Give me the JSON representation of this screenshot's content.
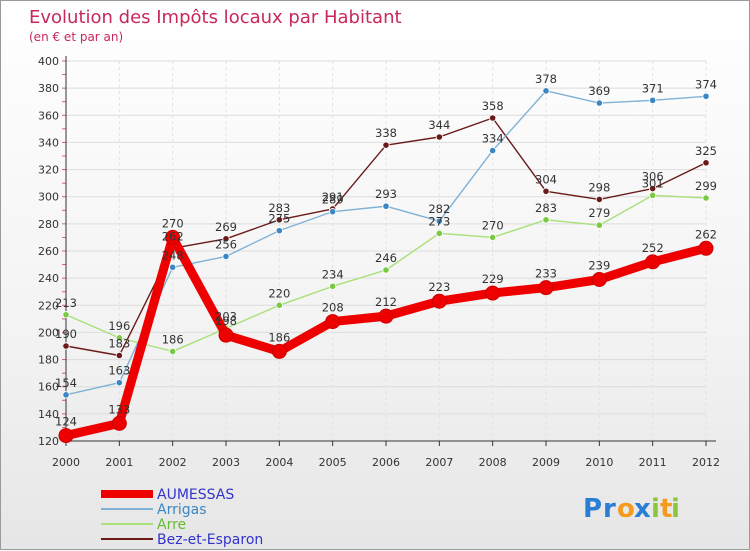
{
  "chart_data": {
    "type": "line",
    "title": "Evolution des Impôts locaux par Habitant",
    "subtitle": "(en € et par an)",
    "x": [
      "2000",
      "2001",
      "2002",
      "2003",
      "2004",
      "2005",
      "2006",
      "2007",
      "2008",
      "2009",
      "2010",
      "2011",
      "2012"
    ],
    "ylim": [
      120,
      400
    ],
    "yticks": [
      120,
      140,
      160,
      180,
      200,
      220,
      240,
      260,
      280,
      300,
      320,
      340,
      360,
      380,
      400
    ],
    "grid": true,
    "legend_position": "bottom-left",
    "series": [
      {
        "name": "Bez-et-Esparon",
        "color": "#6b1a1a",
        "marker": "#6b1a1a",
        "values": [
          190,
          183,
          262,
          269,
          283,
          291,
          338,
          344,
          358,
          304,
          298,
          306,
          325
        ]
      },
      {
        "name": "Arre",
        "color": "#a8e07a",
        "marker": "#7ac943",
        "values": [
          213,
          196,
          186,
          203,
          220,
          234,
          246,
          273,
          270,
          283,
          279,
          301,
          299
        ]
      },
      {
        "name": "Arrigas",
        "color": "#7fb2d6",
        "marker": "#3a87c4",
        "values": [
          154,
          163,
          248,
          256,
          275,
          289,
          293,
          282,
          334,
          378,
          369,
          371,
          374
        ]
      },
      {
        "name": "AUMESSAS",
        "color": "#ee0000",
        "marker": "#ee0000",
        "values": [
          124,
          133,
          270,
          198,
          186,
          208,
          212,
          223,
          229,
          233,
          239,
          252,
          262
        ]
      }
    ],
    "legend_order": [
      "AUMESSAS",
      "Arrigas",
      "Arre",
      "Bez-et-Esparon"
    ],
    "legend_colors": {
      "AUMESSAS": "#3333cc",
      "Arrigas": "#3a87c4",
      "Arre": "#66bb33",
      "Bez-et-Esparon": "#3333cc"
    }
  },
  "logo": {
    "text": "Proxiti",
    "letters": [
      "P",
      "r",
      "o",
      "x",
      "i",
      "t",
      "i"
    ],
    "colors": [
      "#2a7fd4",
      "#2a7fd4",
      "#f29b1d",
      "#2a7fd4",
      "#8cc63f",
      "#f29b1d",
      "#8cc63f"
    ]
  }
}
